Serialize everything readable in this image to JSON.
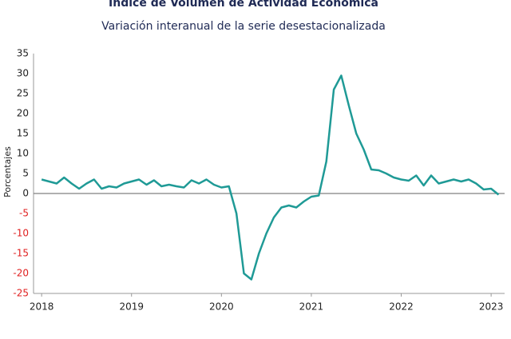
{
  "chart_data": {
    "type": "line",
    "title": "Índice de Volumen de  Actividad Económica",
    "subtitle": "Variación interanual de la serie desestacionalizada",
    "y_label": "Porcentajes",
    "x": [
      2018,
      2018.083,
      2018.167,
      2018.25,
      2018.333,
      2018.417,
      2018.5,
      2018.583,
      2018.667,
      2018.75,
      2018.833,
      2018.917,
      2019,
      2019.083,
      2019.167,
      2019.25,
      2019.333,
      2019.417,
      2019.5,
      2019.583,
      2019.667,
      2019.75,
      2019.833,
      2019.917,
      2020,
      2020.083,
      2020.167,
      2020.25,
      2020.333,
      2020.417,
      2020.5,
      2020.583,
      2020.667,
      2020.75,
      2020.833,
      2020.917,
      2021,
      2021.083,
      2021.167,
      2021.25,
      2021.333,
      2021.417,
      2021.5,
      2021.583,
      2021.667,
      2021.75,
      2021.833,
      2021.917,
      2022,
      2022.083,
      2022.167,
      2022.25,
      2022.333,
      2022.417,
      2022.5,
      2022.583,
      2022.667,
      2022.75,
      2022.833,
      2022.917,
      2023,
      2023.083
    ],
    "series": [
      {
        "name": "Variación interanual",
        "color": "#1f9a96",
        "values": [
          3.5,
          3,
          2.5,
          4,
          2.5,
          1.2,
          2.5,
          3.5,
          1.2,
          1.8,
          1.5,
          2.5,
          3,
          3.5,
          2.2,
          3.3,
          1.8,
          2.2,
          1.8,
          1.5,
          3.3,
          2.5,
          3.5,
          2.2,
          1.5,
          1.8,
          -5,
          -20,
          -21.5,
          -15,
          -10,
          -6,
          -3.5,
          -3,
          -3.5,
          -2,
          -0.8,
          -0.5,
          8,
          26,
          29.5,
          22,
          15,
          11,
          6,
          5.8,
          5,
          4,
          3.5,
          3.2,
          4.5,
          2,
          4.5,
          2.5,
          3,
          3.5,
          3,
          3.5,
          2.5,
          1,
          1.2,
          -0.3
        ]
      }
    ],
    "xlim": [
      2017.91,
      2023.15
    ],
    "xticks": [
      2018,
      2019,
      2020,
      2021,
      2022,
      2023
    ],
    "ylim": [
      -25,
      35
    ],
    "yticks": [
      -25,
      -20,
      -15,
      -10,
      -5,
      0,
      5,
      10,
      15,
      20,
      25,
      30,
      35
    ],
    "negative_tick_color": "#e02020",
    "zero_line_color": "#808080"
  }
}
